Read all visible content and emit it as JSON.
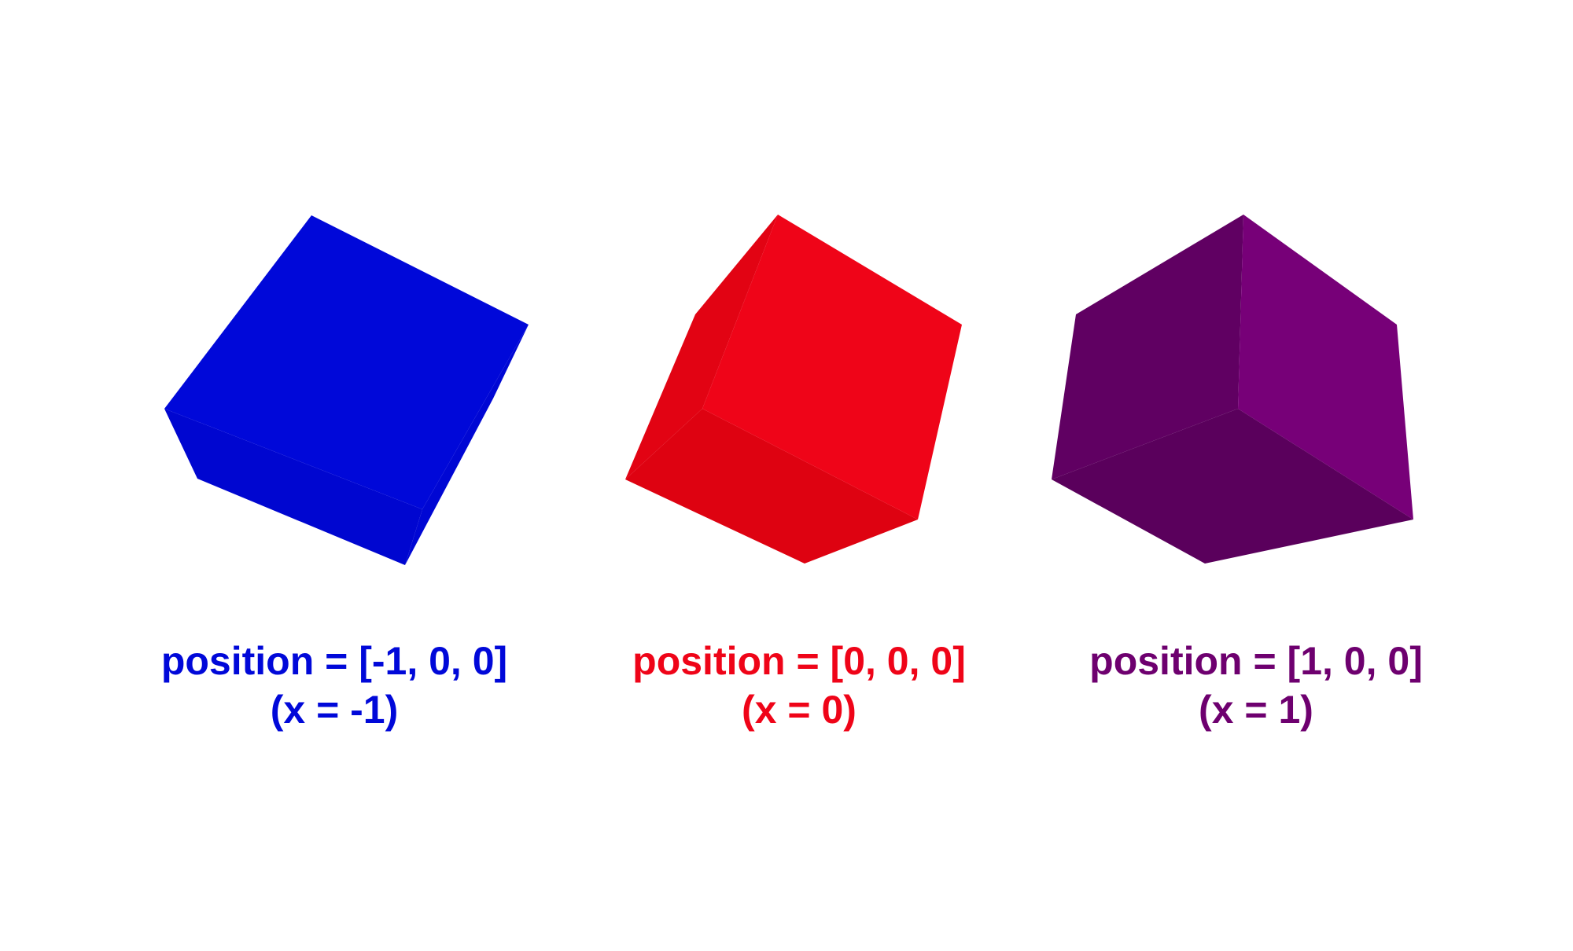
{
  "colors": {
    "blue": "#0008D9",
    "red": "#EF0418",
    "purple": "#6E006F"
  },
  "cubes": [
    {
      "color_key": "blue",
      "label_line1": "position = [-1, 0, 0]",
      "label_line2": "(x = -1)"
    },
    {
      "color_key": "red",
      "label_line1": "position = [0, 0, 0]",
      "label_line2": "(x = 0)"
    },
    {
      "color_key": "purple",
      "label_line1": "position = [1, 0, 0]",
      "label_line2": "(x = 1)"
    }
  ]
}
